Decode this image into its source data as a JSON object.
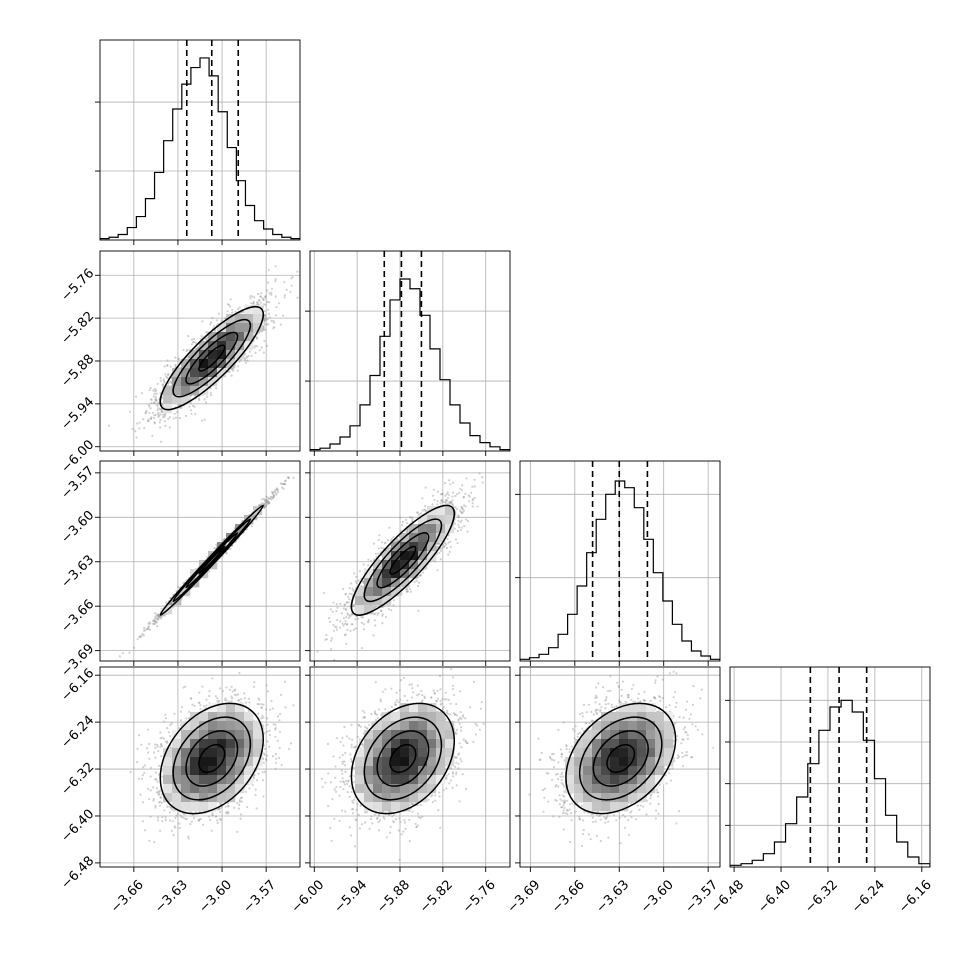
{
  "chart_data": {
    "type": "corner",
    "n_params": 4,
    "params": [
      {
        "range": [
          -3.683,
          -3.547
        ],
        "ticks": [
          -3.66,
          -3.63,
          -3.6,
          -3.57
        ],
        "tick_labels": [
          "−3.66",
          "−3.63",
          "−3.60",
          "−3.57"
        ],
        "quantiles": [
          -3.624,
          -3.607,
          -3.589
        ],
        "histogram": {
          "edges_start": -3.683,
          "edges_stop": -3.547,
          "counts": [
            1,
            2,
            4,
            9,
            17,
            30,
            49,
            72,
            95,
            113,
            125,
            132,
            119,
            93,
            67,
            43,
            25,
            14,
            8,
            4,
            2,
            1
          ],
          "ylim": [
            0,
            145
          ],
          "ygrid": [
            50,
            100
          ]
        }
      },
      {
        "range": [
          -6.006,
          -5.726
        ],
        "ticks": [
          -6.0,
          -5.94,
          -5.88,
          -5.82,
          -5.76
        ],
        "tick_labels": [
          "−6.00",
          "−5.94",
          "−5.88",
          "−5.82",
          "−5.76"
        ],
        "quantiles": [
          -5.902,
          -5.878,
          -5.85
        ],
        "histogram": {
          "edges_start": -6.006,
          "edges_stop": -5.726,
          "counts": [
            1,
            2,
            5,
            10,
            18,
            33,
            54,
            82,
            108,
            123,
            116,
            97,
            73,
            51,
            33,
            20,
            11,
            6,
            3,
            1
          ],
          "ylim": [
            0,
            143
          ],
          "ygrid": [
            50,
            100
          ]
        }
      },
      {
        "range": [
          -3.697,
          -3.562
        ],
        "ticks": [
          -3.69,
          -3.66,
          -3.63,
          -3.6,
          -3.57
        ],
        "tick_labels": [
          "−3.69",
          "−3.66",
          "−3.63",
          "−3.60",
          "−3.57"
        ],
        "quantiles": [
          -3.648,
          -3.63,
          -3.611
        ],
        "histogram": {
          "edges_start": -3.697,
          "edges_stop": -3.562,
          "counts": [
            1,
            2,
            4,
            8,
            16,
            28,
            45,
            65,
            85,
            100,
            108,
            104,
            92,
            73,
            53,
            36,
            22,
            12,
            6,
            3,
            1
          ],
          "ylim": [
            0,
            120
          ],
          "ygrid": [
            50,
            100
          ]
        }
      },
      {
        "range": [
          -6.487,
          -6.146
        ],
        "ticks": [
          -6.48,
          -6.4,
          -6.32,
          -6.24,
          -6.16
        ],
        "tick_labels": [
          "−6.48",
          "−6.40",
          "−6.32",
          "−6.24",
          "−6.16"
        ],
        "quantiles": [
          -6.35,
          -6.301,
          -6.254
        ],
        "histogram": {
          "edges_start": -6.487,
          "edges_stop": -6.146,
          "counts": [
            1,
            2,
            4,
            8,
            15,
            26,
            42,
            62,
            82,
            96,
            100,
            93,
            76,
            53,
            31,
            15,
            6,
            2
          ],
          "ylim": [
            0,
            120
          ],
          "ygrid": [
            25,
            50,
            75,
            100
          ]
        }
      }
    ],
    "pairs": [
      {
        "row": 1,
        "col": 0,
        "mean": [
          -3.607,
          -5.876
        ],
        "sd": [
          0.0175,
          0.036
        ],
        "rho": 0.85
      },
      {
        "row": 2,
        "col": 0,
        "mean": [
          -3.607,
          -3.629
        ],
        "sd": [
          0.0175,
          0.0185
        ],
        "rho": 0.995
      },
      {
        "row": 2,
        "col": 1,
        "mean": [
          -5.876,
          -3.629
        ],
        "sd": [
          0.036,
          0.0185
        ],
        "rho": 0.85
      },
      {
        "row": 3,
        "col": 0,
        "mean": [
          -3.607,
          -6.302
        ],
        "sd": [
          0.0175,
          0.047
        ],
        "rho": 0.35
      },
      {
        "row": 3,
        "col": 1,
        "mean": [
          -5.876,
          -6.302
        ],
        "sd": [
          0.036,
          0.047
        ],
        "rho": 0.32
      },
      {
        "row": 3,
        "col": 2,
        "mean": [
          -3.629,
          -6.302
        ],
        "sd": [
          0.0185,
          0.047
        ],
        "rho": 0.35
      }
    ],
    "contour_levels_sigma": [
      0.5,
      1.0,
      1.5,
      2.0
    ],
    "grid": true,
    "colors": {
      "line": "#000000",
      "grid": "#b0b0b0",
      "points": "#9a9a9a",
      "density": "#000000"
    }
  }
}
